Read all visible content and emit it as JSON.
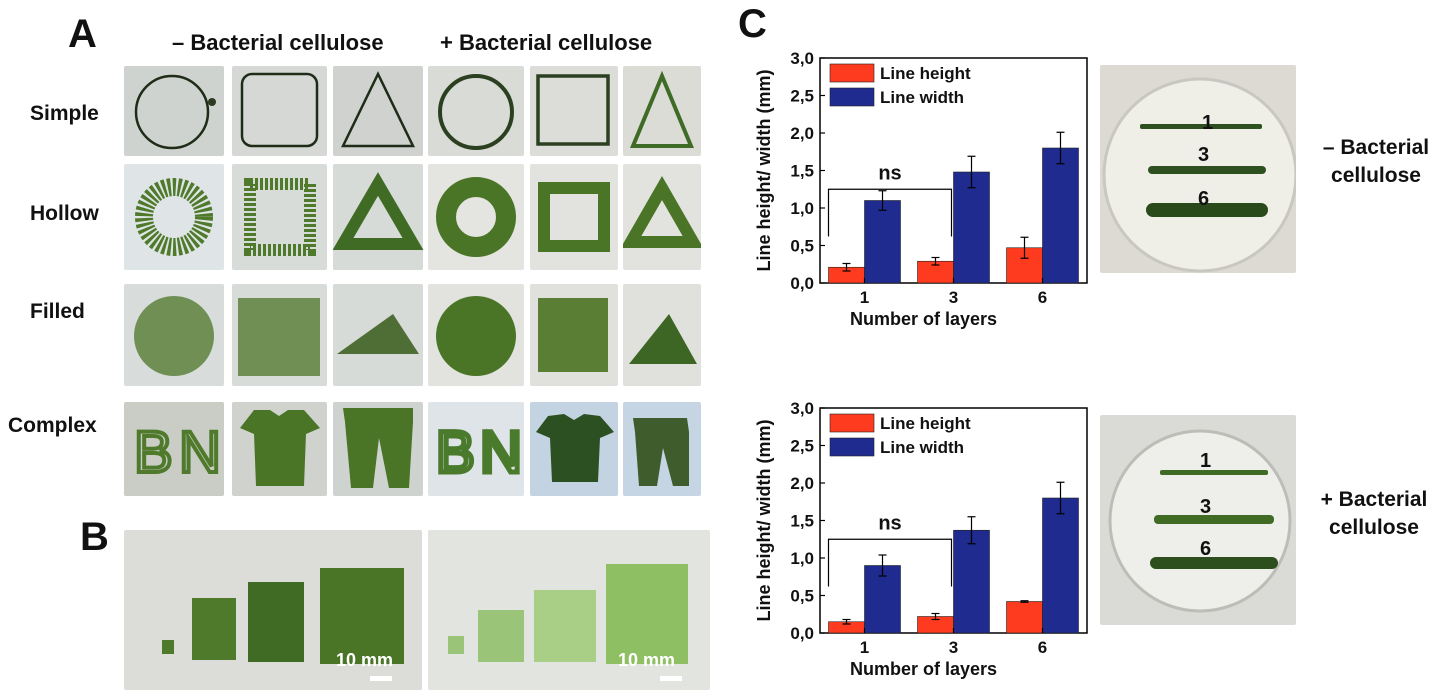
{
  "panels": {
    "a": "A",
    "b": "B",
    "c": "C"
  },
  "panel_a": {
    "col_headers": [
      "– Bacterial cellulose",
      "+ Bacterial cellulose"
    ],
    "rows": [
      "Simple",
      "Hollow",
      "Filled",
      "Complex"
    ],
    "complex_letters": [
      "B",
      "N"
    ]
  },
  "panel_b": {
    "scale_labels": [
      "10 mm",
      "10 mm"
    ]
  },
  "panel_c": {
    "plate_labels_top": [
      "1",
      "3",
      "6"
    ],
    "plate_labels_bottom": [
      "1",
      "3",
      "6"
    ],
    "side_label_top": [
      "– Bacterial",
      "cellulose"
    ],
    "side_label_bottom": [
      "+ Bacterial",
      "cellulose"
    ]
  },
  "colors": {
    "red": "#ff3b1f",
    "blue": "#1f2b8f",
    "algae": "#4f7a2c"
  },
  "chart_data": [
    {
      "type": "bar",
      "categories": [
        "1",
        "3",
        "6"
      ],
      "series": [
        {
          "name": "Line height",
          "values": [
            0.21,
            0.29,
            0.47
          ],
          "errors": [
            0.05,
            0.05,
            0.14
          ]
        },
        {
          "name": "Line width",
          "values": [
            1.1,
            1.48,
            1.8
          ],
          "errors": [
            0.13,
            0.21,
            0.21
          ]
        }
      ],
      "xlabel": "Number of layers",
      "ylabel": "Line height/ width (mm)",
      "ylim": [
        0,
        3.0
      ],
      "yticks": [
        "0,0",
        "0,5",
        "1,0",
        "1,5",
        "2,0",
        "2,5",
        "3,0"
      ],
      "annotation": "ns",
      "legend_position": "top-left"
    },
    {
      "type": "bar",
      "categories": [
        "1",
        "3",
        "6"
      ],
      "series": [
        {
          "name": "Line height",
          "values": [
            0.15,
            0.22,
            0.42
          ],
          "errors": [
            0.03,
            0.04,
            0.01
          ]
        },
        {
          "name": "Line width",
          "values": [
            0.9,
            1.37,
            1.8
          ],
          "errors": [
            0.14,
            0.18,
            0.21
          ]
        }
      ],
      "xlabel": "Number of layers",
      "ylabel": "Line height/ width (mm)",
      "ylim": [
        0,
        3.0
      ],
      "yticks": [
        "0,0",
        "0,5",
        "1,0",
        "1,5",
        "2,0",
        "2,5",
        "3,0"
      ],
      "annotation": "ns",
      "legend_position": "top-left"
    }
  ]
}
